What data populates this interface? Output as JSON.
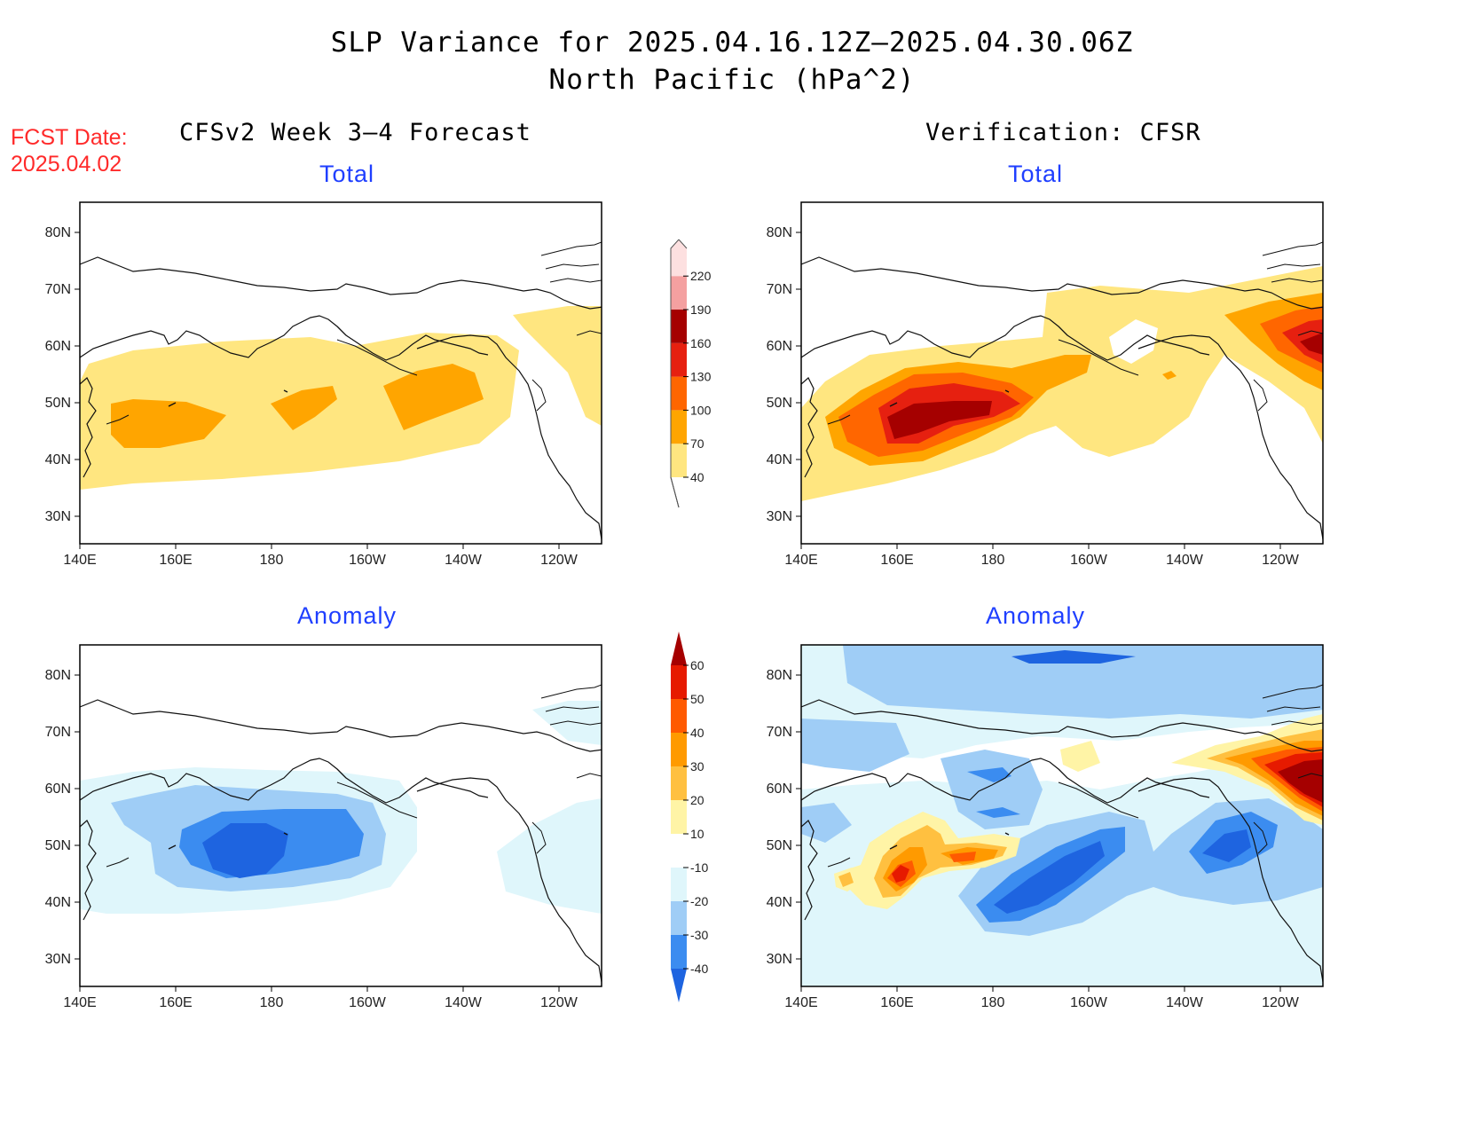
{
  "header": {
    "title_line1": "SLP Variance for 2025.04.16.12Z–2025.04.30.06Z",
    "title_line2": "North Pacific (hPa^2)"
  },
  "fcst_date": {
    "label": "FCST Date:",
    "value": "2025.04.02"
  },
  "columns": {
    "left": "CFSv2 Week 3–4 Forecast",
    "right": "Verification: CFSR"
  },
  "panels": {
    "top_left_title": "Total",
    "top_right_title": "Total",
    "bottom_left_title": "Anomaly",
    "bottom_right_title": "Anomaly"
  },
  "axes": {
    "lat_ticks": [
      "80N",
      "70N",
      "60N",
      "50N",
      "40N",
      "30N"
    ],
    "lon_ticks": [
      "140E",
      "160E",
      "180",
      "160W",
      "140W",
      "120W"
    ]
  },
  "colorbar_total": {
    "levels": [
      "40",
      "70",
      "100",
      "130",
      "160",
      "190",
      "220"
    ],
    "colors": [
      "#ffe680",
      "#ffa500",
      "#ff6600",
      "#e62010",
      "#a50000",
      "#f4a0a0",
      "#fde0e0"
    ]
  },
  "colorbar_anomaly": {
    "levels": [
      "-40",
      "-30",
      "-20",
      "-10",
      "10",
      "20",
      "30",
      "40",
      "50",
      "60"
    ],
    "colors": [
      "#1e64e0",
      "#3b8cf0",
      "#9fcdf6",
      "#dff6fb",
      "#ffffff",
      "#fff4a6",
      "#ffc040",
      "#ff9a00",
      "#ff5a00",
      "#e61a00",
      "#a50000"
    ]
  }
}
